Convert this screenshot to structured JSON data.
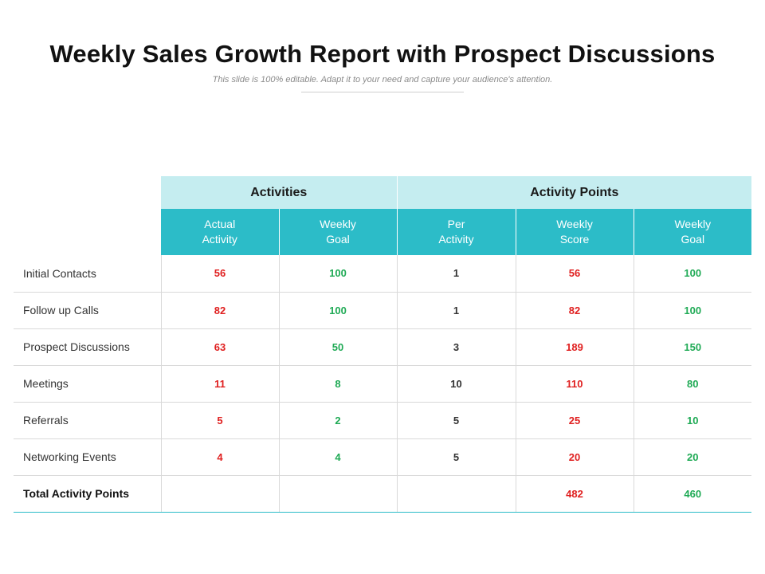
{
  "header": {
    "title": "Weekly Sales Growth Report with Prospect Discussions",
    "subtitle": "This slide is 100% editable. Adapt it to your need and capture your audience's attention."
  },
  "table": {
    "groups": {
      "activities": "Activities",
      "activity_points": "Activity Points"
    },
    "columns": [
      {
        "line1": "Actual",
        "line2": "Activity"
      },
      {
        "line1": "Weekly",
        "line2": "Goal"
      },
      {
        "line1": "Per",
        "line2": "Activity"
      },
      {
        "line1": "Weekly",
        "line2": "Score"
      },
      {
        "line1": "Weekly",
        "line2": "Goal"
      }
    ],
    "rows": [
      {
        "label": "Initial Contacts",
        "actual": "56",
        "goal": "100",
        "per": "1",
        "score": "56",
        "points_goal": "100"
      },
      {
        "label": "Follow up Calls",
        "actual": "82",
        "goal": "100",
        "per": "1",
        "score": "82",
        "points_goal": "100"
      },
      {
        "label": "Prospect Discussions",
        "actual": "63",
        "goal": "50",
        "per": "3",
        "score": "189",
        "points_goal": "150"
      },
      {
        "label": "Meetings",
        "actual": "11",
        "goal": "8",
        "per": "10",
        "score": "110",
        "points_goal": "80"
      },
      {
        "label": "Referrals",
        "actual": "5",
        "goal": "2",
        "per": "5",
        "score": "25",
        "points_goal": "10"
      },
      {
        "label": "Networking Events",
        "actual": "4",
        "goal": "4",
        "per": "5",
        "score": "20",
        "points_goal": "20"
      }
    ],
    "total": {
      "label": "Total Activity  Points",
      "score": "482",
      "points_goal": "460"
    }
  },
  "colors": {
    "header_light": "#c5edf0",
    "header_teal": "#2cbcc8",
    "value_red": "#e02020",
    "value_green": "#1faa55"
  }
}
